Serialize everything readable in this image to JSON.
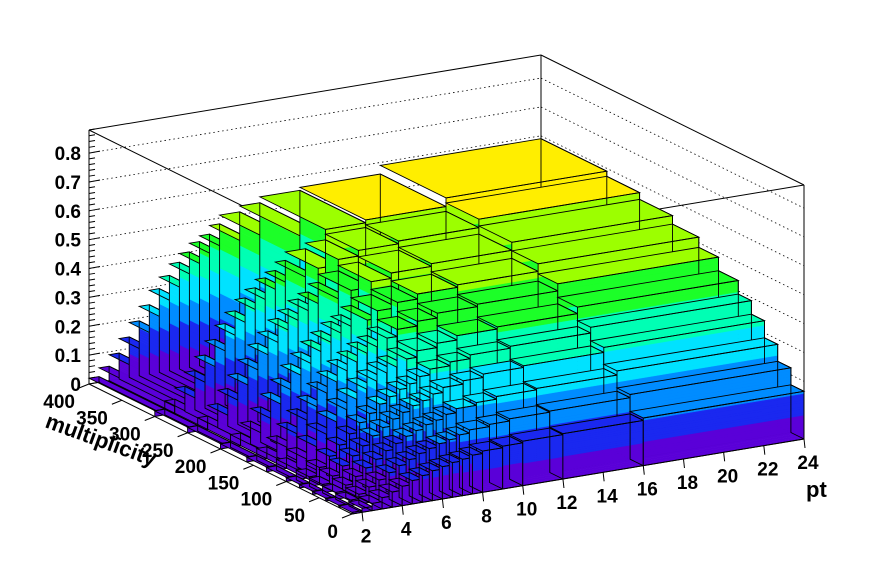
{
  "chart_data": {
    "type": "lego3d",
    "title": "",
    "xlabel": "pt",
    "ylabel": "multiplicity",
    "zlabel": "",
    "xlim": [
      1.5,
      24
    ],
    "ylim": [
      0,
      400
    ],
    "zlim": [
      0,
      0.88
    ],
    "x_ticks": [
      "2",
      "4",
      "6",
      "8",
      "10",
      "12",
      "14",
      "16",
      "18",
      "20",
      "22",
      "24"
    ],
    "y_ticks": [
      "0",
      "50",
      "100",
      "150",
      "200",
      "250",
      "300",
      "350",
      "400"
    ],
    "z_ticks": [
      "0",
      "0.1",
      "0.2",
      "0.3",
      "0.4",
      "0.5",
      "0.6",
      "0.7",
      "0.8"
    ],
    "pt_bin_edges": [
      1.5,
      2,
      2.5,
      3,
      3.5,
      4,
      4.5,
      5,
      5.5,
      6,
      6.5,
      7,
      7.5,
      8,
      9,
      10,
      12,
      16,
      24
    ],
    "multiplicity_bin_edges": [
      0,
      20,
      40,
      60,
      80,
      100,
      130,
      160,
      200,
      250,
      300,
      400
    ],
    "pt_plateau": [
      0.02,
      0.05,
      0.09,
      0.14,
      0.19,
      0.24,
      0.29,
      0.33,
      0.37,
      0.4,
      0.43,
      0.45,
      0.48,
      0.51,
      0.53,
      0.55,
      0.56,
      0.59
    ],
    "multiplicity_scale": [
      0.28,
      0.38,
      0.48,
      0.58,
      0.66,
      0.74,
      0.82,
      0.88,
      0.93,
      0.97,
      1.0
    ],
    "colors": [
      "#5a00d8",
      "#1a28f0",
      "#008cff",
      "#00e2ff",
      "#00ffb4",
      "#1cff28",
      "#9cff00",
      "#ffee00",
      "#ffaa00",
      "#ff7000",
      "#ff0000"
    ]
  }
}
